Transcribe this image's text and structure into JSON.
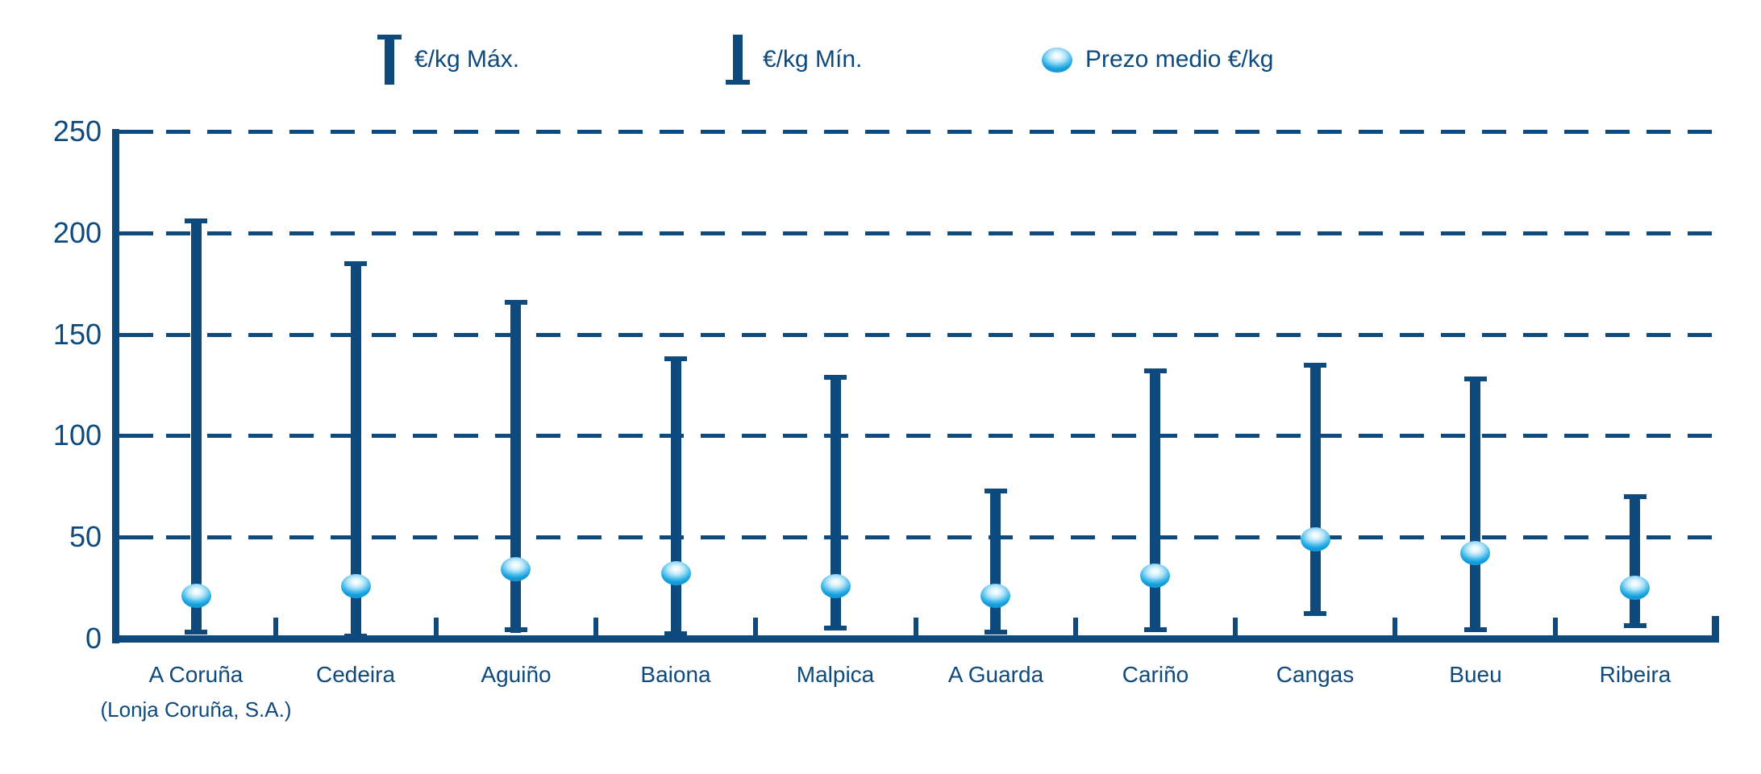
{
  "colors": {
    "navy": "#0e4a7e",
    "sphere_blue": "#149bd8",
    "background": "#ffffff"
  },
  "chart_data": {
    "type": "range-bar",
    "title": "",
    "xlabel": "",
    "ylabel": "",
    "ylim": [
      0,
      250
    ],
    "yticks": [
      0,
      50,
      100,
      150,
      200,
      250
    ],
    "grid": "dashed horizontal",
    "legend_position": "top",
    "categories": [
      {
        "label": "A Coruña",
        "sublabel": "(Lonja Coruña, S.A.)"
      },
      {
        "label": "Cedeira",
        "sublabel": ""
      },
      {
        "label": "Aguiño",
        "sublabel": ""
      },
      {
        "label": "Baiona",
        "sublabel": ""
      },
      {
        "label": "Malpica",
        "sublabel": ""
      },
      {
        "label": "A Guarda",
        "sublabel": ""
      },
      {
        "label": "Cariño",
        "sublabel": ""
      },
      {
        "label": "Cangas",
        "sublabel": ""
      },
      {
        "label": "Bueu",
        "sublabel": ""
      },
      {
        "label": "Ribeira",
        "sublabel": ""
      }
    ],
    "series": [
      {
        "name": "€/kg Máx.",
        "marker": "bar-top-cap",
        "values": [
          207,
          186,
          167,
          139,
          130,
          74,
          133,
          136,
          129,
          71
        ]
      },
      {
        "name": "€/kg Mín.",
        "marker": "bar-bottom-cap",
        "values": [
          2,
          0,
          3,
          1,
          4,
          2,
          3,
          11,
          3,
          5
        ]
      },
      {
        "name": "Prezo medio €/kg",
        "marker": "sphere",
        "values": [
          21,
          26,
          34,
          32,
          26,
          21,
          31,
          49,
          42,
          25
        ]
      }
    ]
  }
}
